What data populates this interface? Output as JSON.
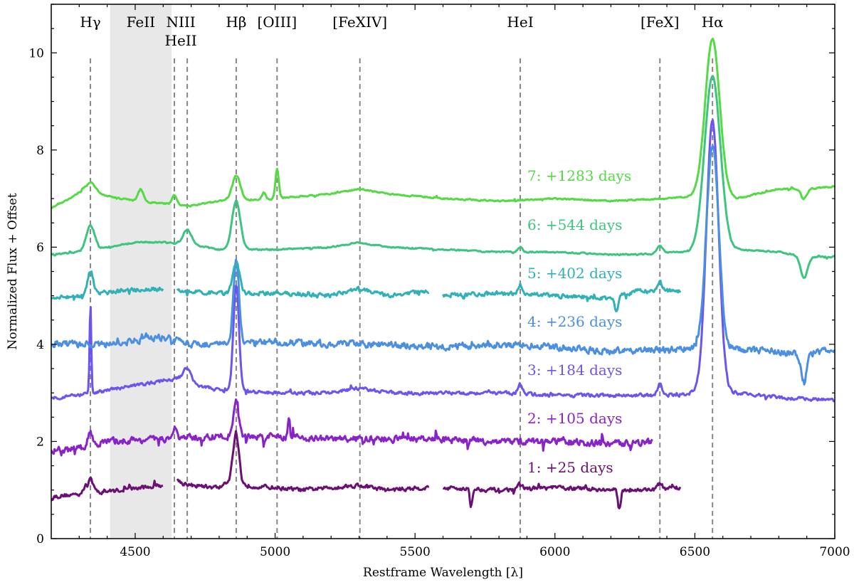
{
  "chart_data": {
    "type": "line",
    "title": "",
    "xlabel": "Restframe Wavelength [λ]",
    "ylabel": "Normalized Flux + Offset",
    "xlim": [
      4200,
      7000
    ],
    "ylim": [
      0,
      11
    ],
    "grid": false,
    "xticks": [
      4500,
      5000,
      5500,
      6000,
      6500,
      7000
    ],
    "yticks": [
      0,
      2,
      4,
      6,
      8,
      10
    ],
    "shaded_region": {
      "x_start": 4410,
      "x_end": 4630,
      "label": "FeII"
    },
    "lines": [
      {
        "label": "Hγ",
        "wavelength": 4340
      },
      {
        "label": "NIII",
        "label2": "HeII",
        "wavelength": 4640,
        "wavelength2": 4686
      },
      {
        "label": "Hβ",
        "wavelength": 4861
      },
      {
        "label": "[OIII]",
        "wavelength": 5007
      },
      {
        "label": "[FeXIV]",
        "wavelength": 5303
      },
      {
        "label": "HeI",
        "wavelength": 5876
      },
      {
        "label": "[FeX]",
        "wavelength": 6375
      },
      {
        "label": "Hα",
        "wavelength": 6563
      }
    ],
    "series": [
      {
        "name": "1: +25 days",
        "color": "#6b0f75",
        "noise": 0.06,
        "sharp": 0.15,
        "segments": [
          [
            4200,
            4600
          ],
          [
            4650,
            5550
          ],
          [
            5600,
            6450
          ]
        ],
        "points": [
          [
            4200,
            0.86
          ],
          [
            4300,
            0.92
          ],
          [
            4330,
            1.12
          ],
          [
            4360,
            0.95
          ],
          [
            4450,
            1.0
          ],
          [
            4600,
            1.1
          ],
          [
            4650,
            1.2
          ],
          [
            4700,
            1.1
          ],
          [
            4800,
            1.05
          ],
          [
            4840,
            1.2
          ],
          [
            4860,
            1.6
          ],
          [
            4880,
            1.1
          ],
          [
            5000,
            1.05
          ],
          [
            5100,
            1.0
          ],
          [
            5300,
            1.1
          ],
          [
            5400,
            1.0
          ],
          [
            5550,
            1.05
          ],
          [
            5600,
            1.05
          ],
          [
            5800,
            1.0
          ],
          [
            6000,
            1.05
          ],
          [
            6200,
            1.0
          ],
          [
            6300,
            1.0
          ],
          [
            6450,
            1.05
          ]
        ],
        "peaks": [
          [
            4861,
            0.6,
            12
          ],
          [
            4340,
            0.2,
            10
          ],
          [
            5876,
            0.1,
            8
          ],
          [
            6375,
            0.1,
            8
          ]
        ],
        "dips": [
          [
            5700,
            -0.4,
            4
          ],
          [
            6230,
            -0.4,
            5
          ],
          [
            4330,
            -0.15,
            4
          ]
        ]
      },
      {
        "name": "2: +105 days",
        "color": "#8a22c9",
        "noise": 0.1,
        "sharp": 0.3,
        "segments": [
          [
            4200,
            6350
          ]
        ],
        "points": [
          [
            4200,
            1.8
          ],
          [
            4300,
            1.85
          ],
          [
            4400,
            2.0
          ],
          [
            4600,
            2.05
          ],
          [
            4800,
            2.1
          ],
          [
            5000,
            2.1
          ],
          [
            5200,
            2.05
          ],
          [
            5500,
            2.05
          ],
          [
            5800,
            2.0
          ],
          [
            6000,
            2.0
          ],
          [
            6200,
            1.95
          ],
          [
            6350,
            2.0
          ]
        ],
        "peaks": [
          [
            4861,
            0.75,
            10
          ],
          [
            5050,
            0.45,
            4
          ],
          [
            4340,
            0.3,
            8
          ],
          [
            4640,
            0.2,
            8
          ]
        ],
        "dips": []
      },
      {
        "name": "3: +184 days",
        "color": "#6a55f0",
        "noise": 0.05,
        "sharp": 0.1,
        "segments": [
          [
            4200,
            7000
          ]
        ],
        "points": [
          [
            4200,
            2.9
          ],
          [
            4300,
            2.95
          ],
          [
            4400,
            3.05
          ],
          [
            4550,
            3.2
          ],
          [
            4650,
            3.3
          ],
          [
            4700,
            3.2
          ],
          [
            4800,
            3.05
          ],
          [
            5000,
            3.0
          ],
          [
            5200,
            3.0
          ],
          [
            5300,
            3.1
          ],
          [
            5400,
            3.0
          ],
          [
            5600,
            3.0
          ],
          [
            5800,
            3.0
          ],
          [
            6000,
            2.95
          ],
          [
            6200,
            2.95
          ],
          [
            6400,
            2.95
          ],
          [
            6500,
            3.0
          ],
          [
            6650,
            3.0
          ],
          [
            6800,
            2.9
          ],
          [
            7000,
            2.85
          ]
        ],
        "peaks": [
          [
            4861,
            2.2,
            10
          ],
          [
            4340,
            2.3,
            3
          ],
          [
            4686,
            0.25,
            15
          ],
          [
            5876,
            0.2,
            8
          ],
          [
            6375,
            0.25,
            8
          ],
          [
            6563,
            5.6,
            22
          ]
        ],
        "dips": [
          [
            4340,
            -0.45,
            3
          ]
        ]
      },
      {
        "name": "4: +236 days",
        "color": "#4b8fe3",
        "noise": 0.1,
        "sharp": 0.1,
        "segments": [
          [
            4200,
            7000
          ]
        ],
        "points": [
          [
            4200,
            4.0
          ],
          [
            4400,
            4.0
          ],
          [
            4600,
            4.15
          ],
          [
            4700,
            4.0
          ],
          [
            4800,
            4.0
          ],
          [
            5000,
            4.05
          ],
          [
            5200,
            4.0
          ],
          [
            5400,
            4.0
          ],
          [
            5600,
            3.95
          ],
          [
            5800,
            4.0
          ],
          [
            6000,
            3.95
          ],
          [
            6200,
            3.85
          ],
          [
            6400,
            3.9
          ],
          [
            6500,
            3.9
          ],
          [
            6650,
            3.9
          ],
          [
            6800,
            3.85
          ],
          [
            6880,
            3.8
          ],
          [
            6950,
            3.85
          ],
          [
            7000,
            3.9
          ]
        ],
        "peaks": [
          [
            4861,
            1.7,
            10
          ],
          [
            6563,
            4.2,
            22
          ]
        ],
        "dips": [
          [
            6890,
            -0.6,
            10
          ]
        ]
      },
      {
        "name": "5: +402 days",
        "color": "#2fb1b7",
        "noise": 0.06,
        "sharp": 0.1,
        "segments": [
          [
            4200,
            4600
          ],
          [
            4650,
            5550
          ],
          [
            5600,
            6450
          ]
        ],
        "points": [
          [
            4200,
            4.95
          ],
          [
            4300,
            5.0
          ],
          [
            4450,
            5.1
          ],
          [
            4600,
            5.15
          ],
          [
            4650,
            5.1
          ],
          [
            4800,
            5.05
          ],
          [
            5000,
            5.05
          ],
          [
            5200,
            5.0
          ],
          [
            5300,
            5.15
          ],
          [
            5400,
            5.0
          ],
          [
            5550,
            5.1
          ],
          [
            5600,
            5.0
          ],
          [
            5800,
            5.05
          ],
          [
            6000,
            5.0
          ],
          [
            6200,
            4.95
          ],
          [
            6300,
            5.1
          ],
          [
            6450,
            5.1
          ]
        ],
        "peaks": [
          [
            4861,
            0.65,
            12
          ],
          [
            4340,
            0.5,
            10
          ],
          [
            5876,
            0.2,
            8
          ],
          [
            6375,
            0.2,
            8
          ]
        ],
        "dips": [
          [
            6220,
            -0.3,
            5
          ]
        ]
      },
      {
        "name": "6: +544 days",
        "color": "#3cc480",
        "noise": 0.02,
        "sharp": 0.05,
        "segments": [
          [
            4200,
            7000
          ]
        ],
        "points": [
          [
            4200,
            5.85
          ],
          [
            4300,
            5.9
          ],
          [
            4400,
            6.0
          ],
          [
            4500,
            6.1
          ],
          [
            4600,
            6.1
          ],
          [
            4700,
            6.05
          ],
          [
            4800,
            5.95
          ],
          [
            5000,
            5.95
          ],
          [
            5200,
            6.0
          ],
          [
            5300,
            6.1
          ],
          [
            5400,
            6.0
          ],
          [
            5600,
            5.95
          ],
          [
            5800,
            5.9
          ],
          [
            6000,
            5.9
          ],
          [
            6200,
            5.85
          ],
          [
            6300,
            5.85
          ],
          [
            6450,
            5.9
          ],
          [
            6650,
            5.95
          ],
          [
            6800,
            5.9
          ],
          [
            6900,
            5.8
          ],
          [
            7000,
            5.8
          ]
        ],
        "peaks": [
          [
            4861,
            1.0,
            15
          ],
          [
            4340,
            0.5,
            15
          ],
          [
            4686,
            0.3,
            15
          ],
          [
            5876,
            0.1,
            8
          ],
          [
            6375,
            0.15,
            10
          ],
          [
            6563,
            3.6,
            28
          ]
        ],
        "dips": [
          [
            6890,
            -0.45,
            12
          ]
        ]
      },
      {
        "name": "7: +1283 days",
        "color": "#54da44",
        "noise": 0.02,
        "sharp": 0.05,
        "segments": [
          [
            4200,
            7000
          ]
        ],
        "points": [
          [
            4200,
            6.8
          ],
          [
            4300,
            7.1
          ],
          [
            4400,
            7.05
          ],
          [
            4500,
            6.95
          ],
          [
            4600,
            6.9
          ],
          [
            4700,
            6.85
          ],
          [
            4800,
            6.95
          ],
          [
            5000,
            7.0
          ],
          [
            5200,
            7.1
          ],
          [
            5300,
            7.2
          ],
          [
            5400,
            7.1
          ],
          [
            5600,
            7.0
          ],
          [
            5800,
            6.95
          ],
          [
            6000,
            7.0
          ],
          [
            6200,
            6.95
          ],
          [
            6400,
            7.0
          ],
          [
            6500,
            7.05
          ],
          [
            6650,
            7.0
          ],
          [
            6800,
            7.2
          ],
          [
            6900,
            7.2
          ],
          [
            7000,
            7.25
          ]
        ],
        "peaks": [
          [
            4861,
            0.5,
            15
          ],
          [
            5007,
            0.6,
            6
          ],
          [
            4340,
            0.25,
            20
          ],
          [
            4520,
            0.25,
            10
          ],
          [
            4640,
            0.2,
            8
          ],
          [
            6563,
            3.25,
            26
          ],
          [
            4960,
            0.15,
            6
          ]
        ],
        "dips": [
          [
            6890,
            -0.2,
            10
          ]
        ]
      }
    ]
  }
}
